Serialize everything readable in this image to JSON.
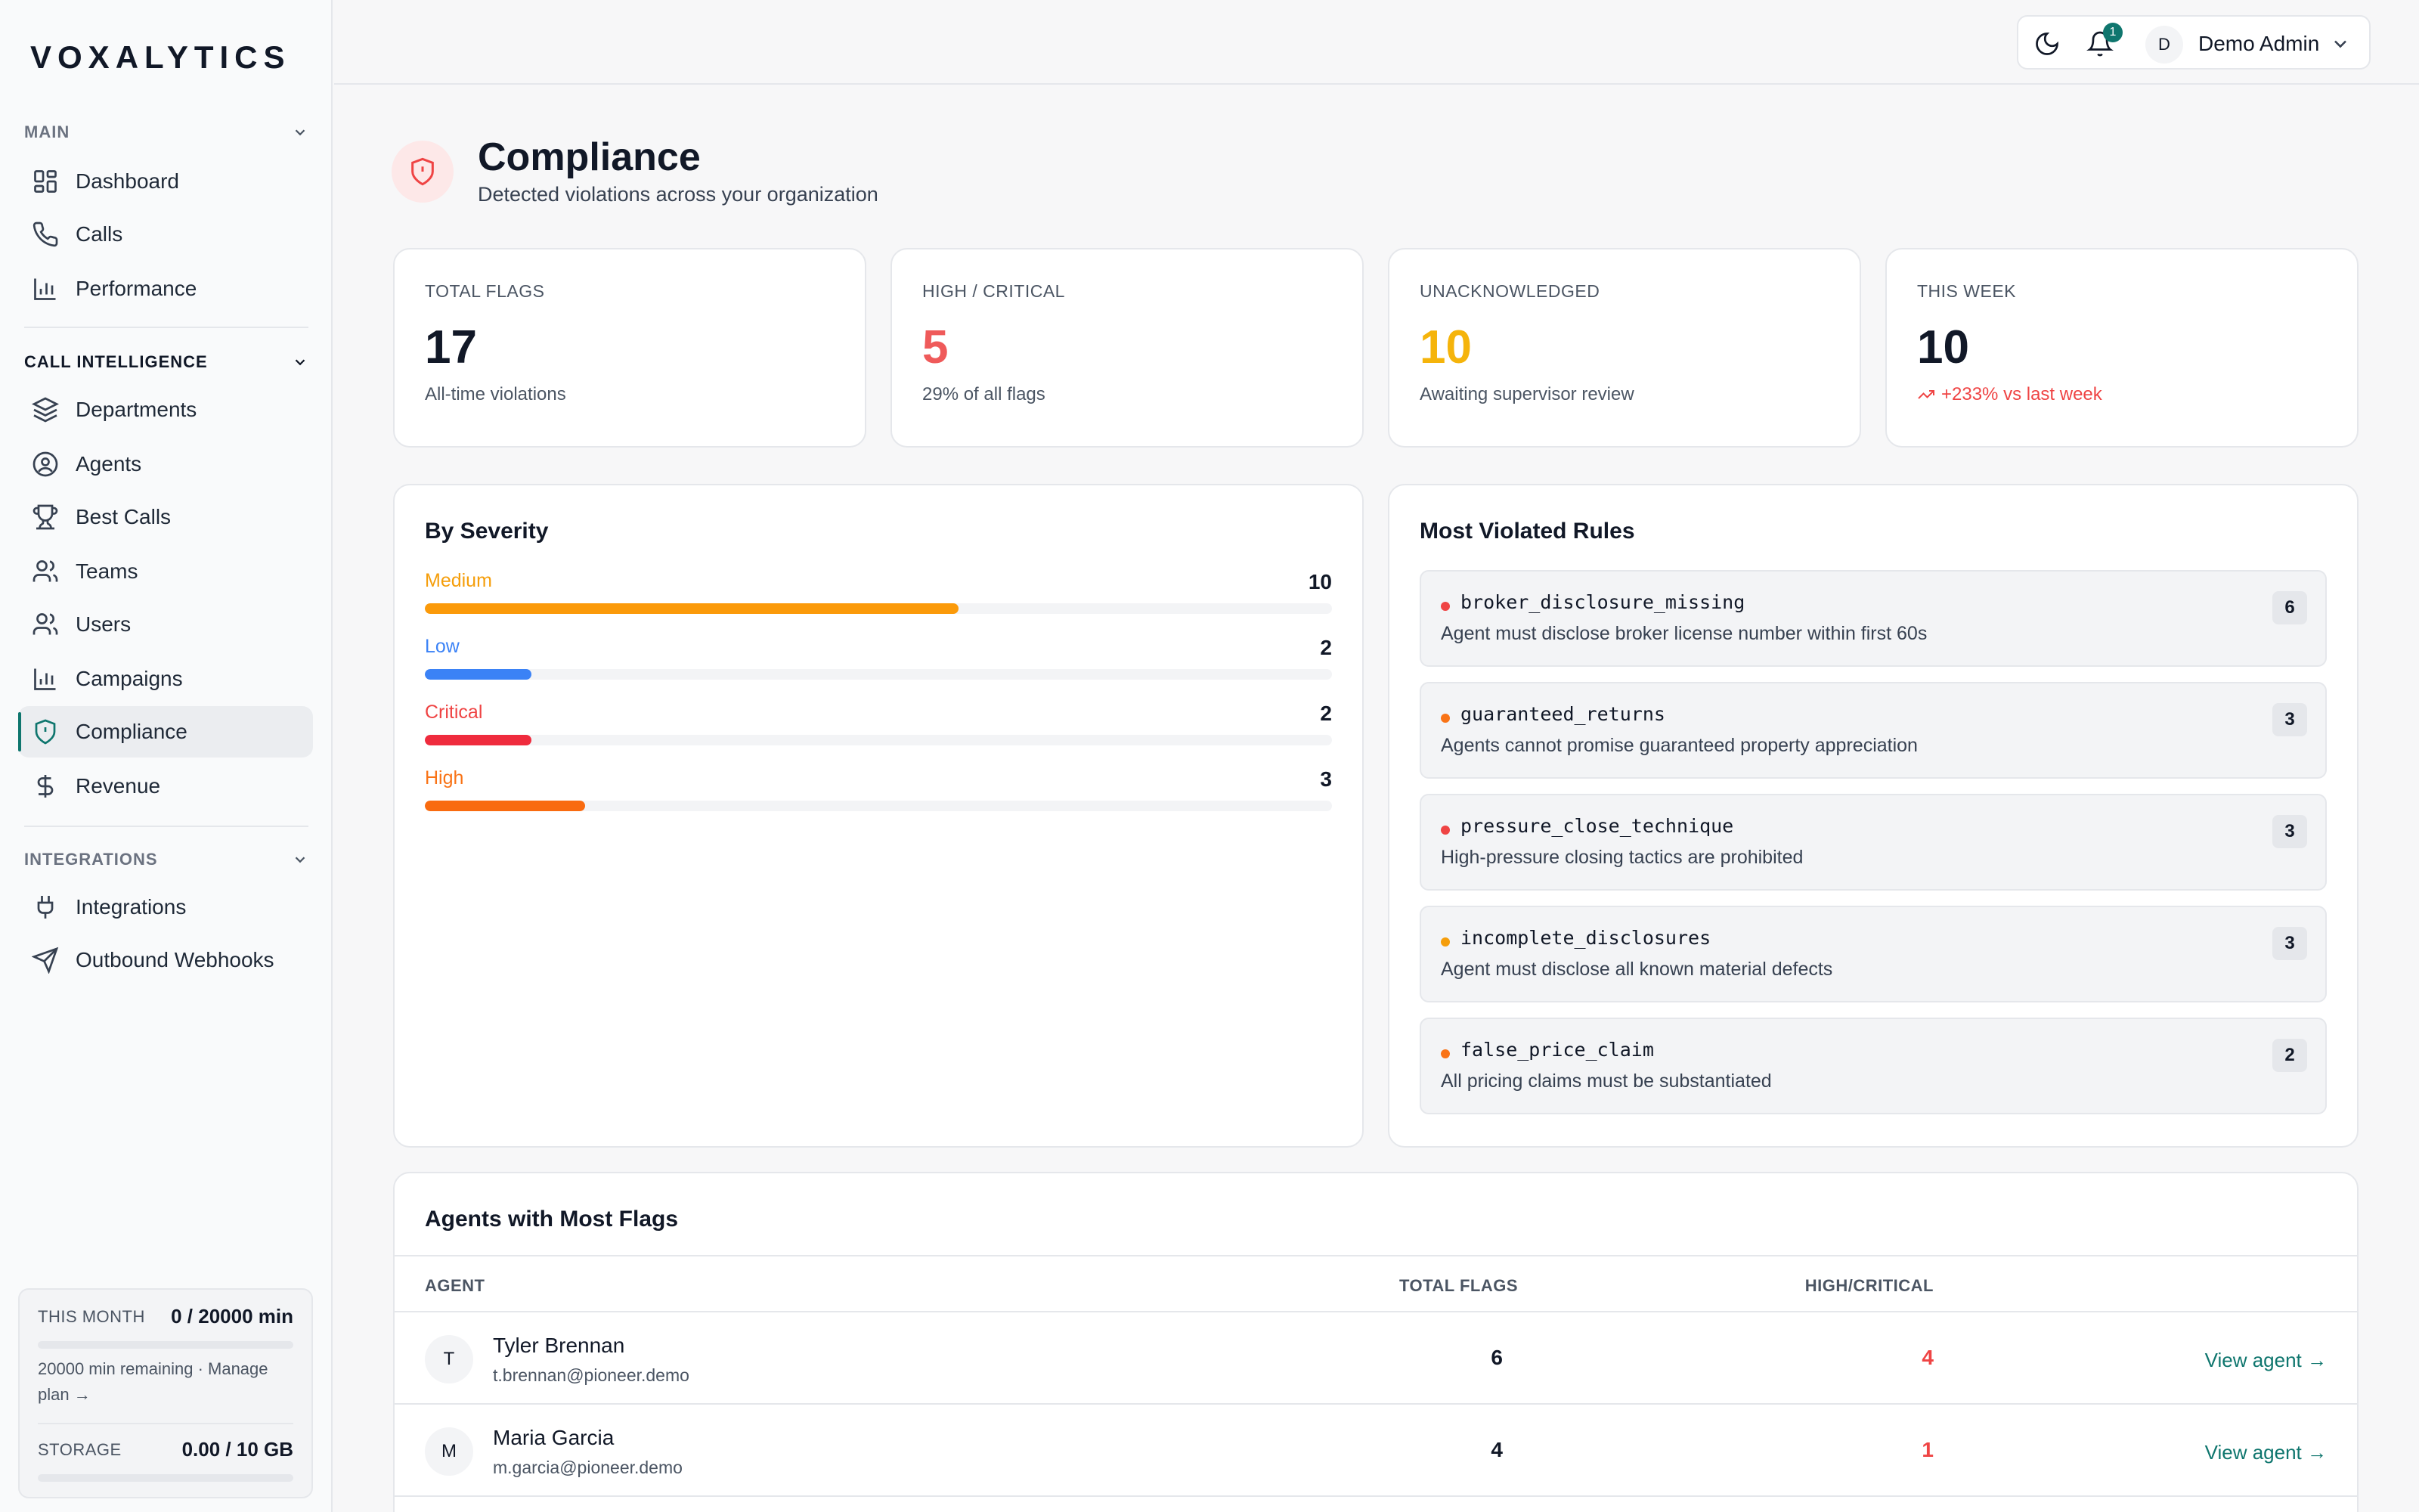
{
  "app": {
    "logo": "VOXALYTICS"
  },
  "sidebar": {
    "sections": [
      {
        "label": "MAIN",
        "items": [
          {
            "label": "Dashboard",
            "icon": "dashboard-grid-icon"
          },
          {
            "label": "Calls",
            "icon": "phone-icon"
          },
          {
            "label": "Performance",
            "icon": "bar-chart-icon"
          }
        ]
      },
      {
        "label": "CALL INTELLIGENCE",
        "items": [
          {
            "label": "Departments",
            "icon": "layers-icon"
          },
          {
            "label": "Agents",
            "icon": "user-circle-icon"
          },
          {
            "label": "Best Calls",
            "icon": "trophy-icon"
          },
          {
            "label": "Teams",
            "icon": "users-icon"
          },
          {
            "label": "Users",
            "icon": "users-icon"
          },
          {
            "label": "Campaigns",
            "icon": "bar-chart-icon"
          },
          {
            "label": "Compliance",
            "icon": "shield-alert-icon",
            "active": true
          },
          {
            "label": "Revenue",
            "icon": "dollar-icon"
          }
        ]
      },
      {
        "label": "INTEGRATIONS",
        "items": [
          {
            "label": "Integrations",
            "icon": "plug-icon"
          },
          {
            "label": "Outbound Webhooks",
            "icon": "send-icon"
          }
        ]
      }
    ],
    "usage": {
      "month_label": "THIS MONTH",
      "month_value": "0 / 20000 min",
      "month_fraction": 0,
      "remaining_text": "20000 min remaining · Manage plan →",
      "storage_label": "STORAGE",
      "storage_value": "0.00 / 10 GB",
      "storage_fraction": 0
    }
  },
  "topbar": {
    "notification_count": "1",
    "user_initial": "D",
    "user_name": "Demo Admin"
  },
  "page": {
    "title": "Compliance",
    "subtitle": "Detected violations across your organization"
  },
  "stats": [
    {
      "label": "TOTAL FLAGS",
      "value": "17",
      "sub": "All-time violations",
      "color": "#111827"
    },
    {
      "label": "HIGH / CRITICAL",
      "value": "5",
      "sub": "29% of all flags",
      "color": "#ef5a5a"
    },
    {
      "label": "UNACKNOWLEDGED",
      "value": "10",
      "sub": "Awaiting supervisor review",
      "color": "#f5b40b"
    },
    {
      "label": "THIS WEEK",
      "value": "10",
      "sub": "+233% vs last week",
      "color": "#111827",
      "sub_color": "#ef4444"
    }
  ],
  "severity": {
    "title": "By Severity",
    "max": 17,
    "rows": [
      {
        "name": "Medium",
        "count": 10,
        "color": "#f59e0b",
        "bar": "#fb9a0a"
      },
      {
        "name": "Low",
        "count": 2,
        "color": "#3b82f6",
        "bar": "#3b82f6"
      },
      {
        "name": "Critical",
        "count": 2,
        "color": "#ef4444",
        "bar": "#ef2b3d"
      },
      {
        "name": "High",
        "count": 3,
        "color": "#f97316",
        "bar": "#f96b10"
      }
    ]
  },
  "rules": {
    "title": "Most Violated Rules",
    "items": [
      {
        "name": "broker_disclosure_missing",
        "desc": "Agent must disclose broker license number within first 60s",
        "count": "6",
        "dot": "#ef4444"
      },
      {
        "name": "guaranteed_returns",
        "desc": "Agents cannot promise guaranteed property appreciation",
        "count": "3",
        "dot": "#f97316"
      },
      {
        "name": "pressure_close_technique",
        "desc": "High-pressure closing tactics are prohibited",
        "count": "3",
        "dot": "#ef4444"
      },
      {
        "name": "incomplete_disclosures",
        "desc": "Agent must disclose all known material defects",
        "count": "3",
        "dot": "#f59e0b"
      },
      {
        "name": "false_price_claim",
        "desc": "All pricing claims must be substantiated",
        "count": "2",
        "dot": "#f97316"
      }
    ]
  },
  "agents": {
    "title": "Agents with Most Flags",
    "headers": {
      "agent": "AGENT",
      "total": "TOTAL FLAGS",
      "high": "HIGH/CRITICAL"
    },
    "link_label": "View agent →",
    "rows": [
      {
        "initial": "T",
        "name": "Tyler Brennan",
        "email": "t.brennan@pioneer.demo",
        "total": "6",
        "high": "4"
      },
      {
        "initial": "M",
        "name": "Maria Garcia",
        "email": "m.garcia@pioneer.demo",
        "total": "4",
        "high": "1"
      }
    ]
  }
}
